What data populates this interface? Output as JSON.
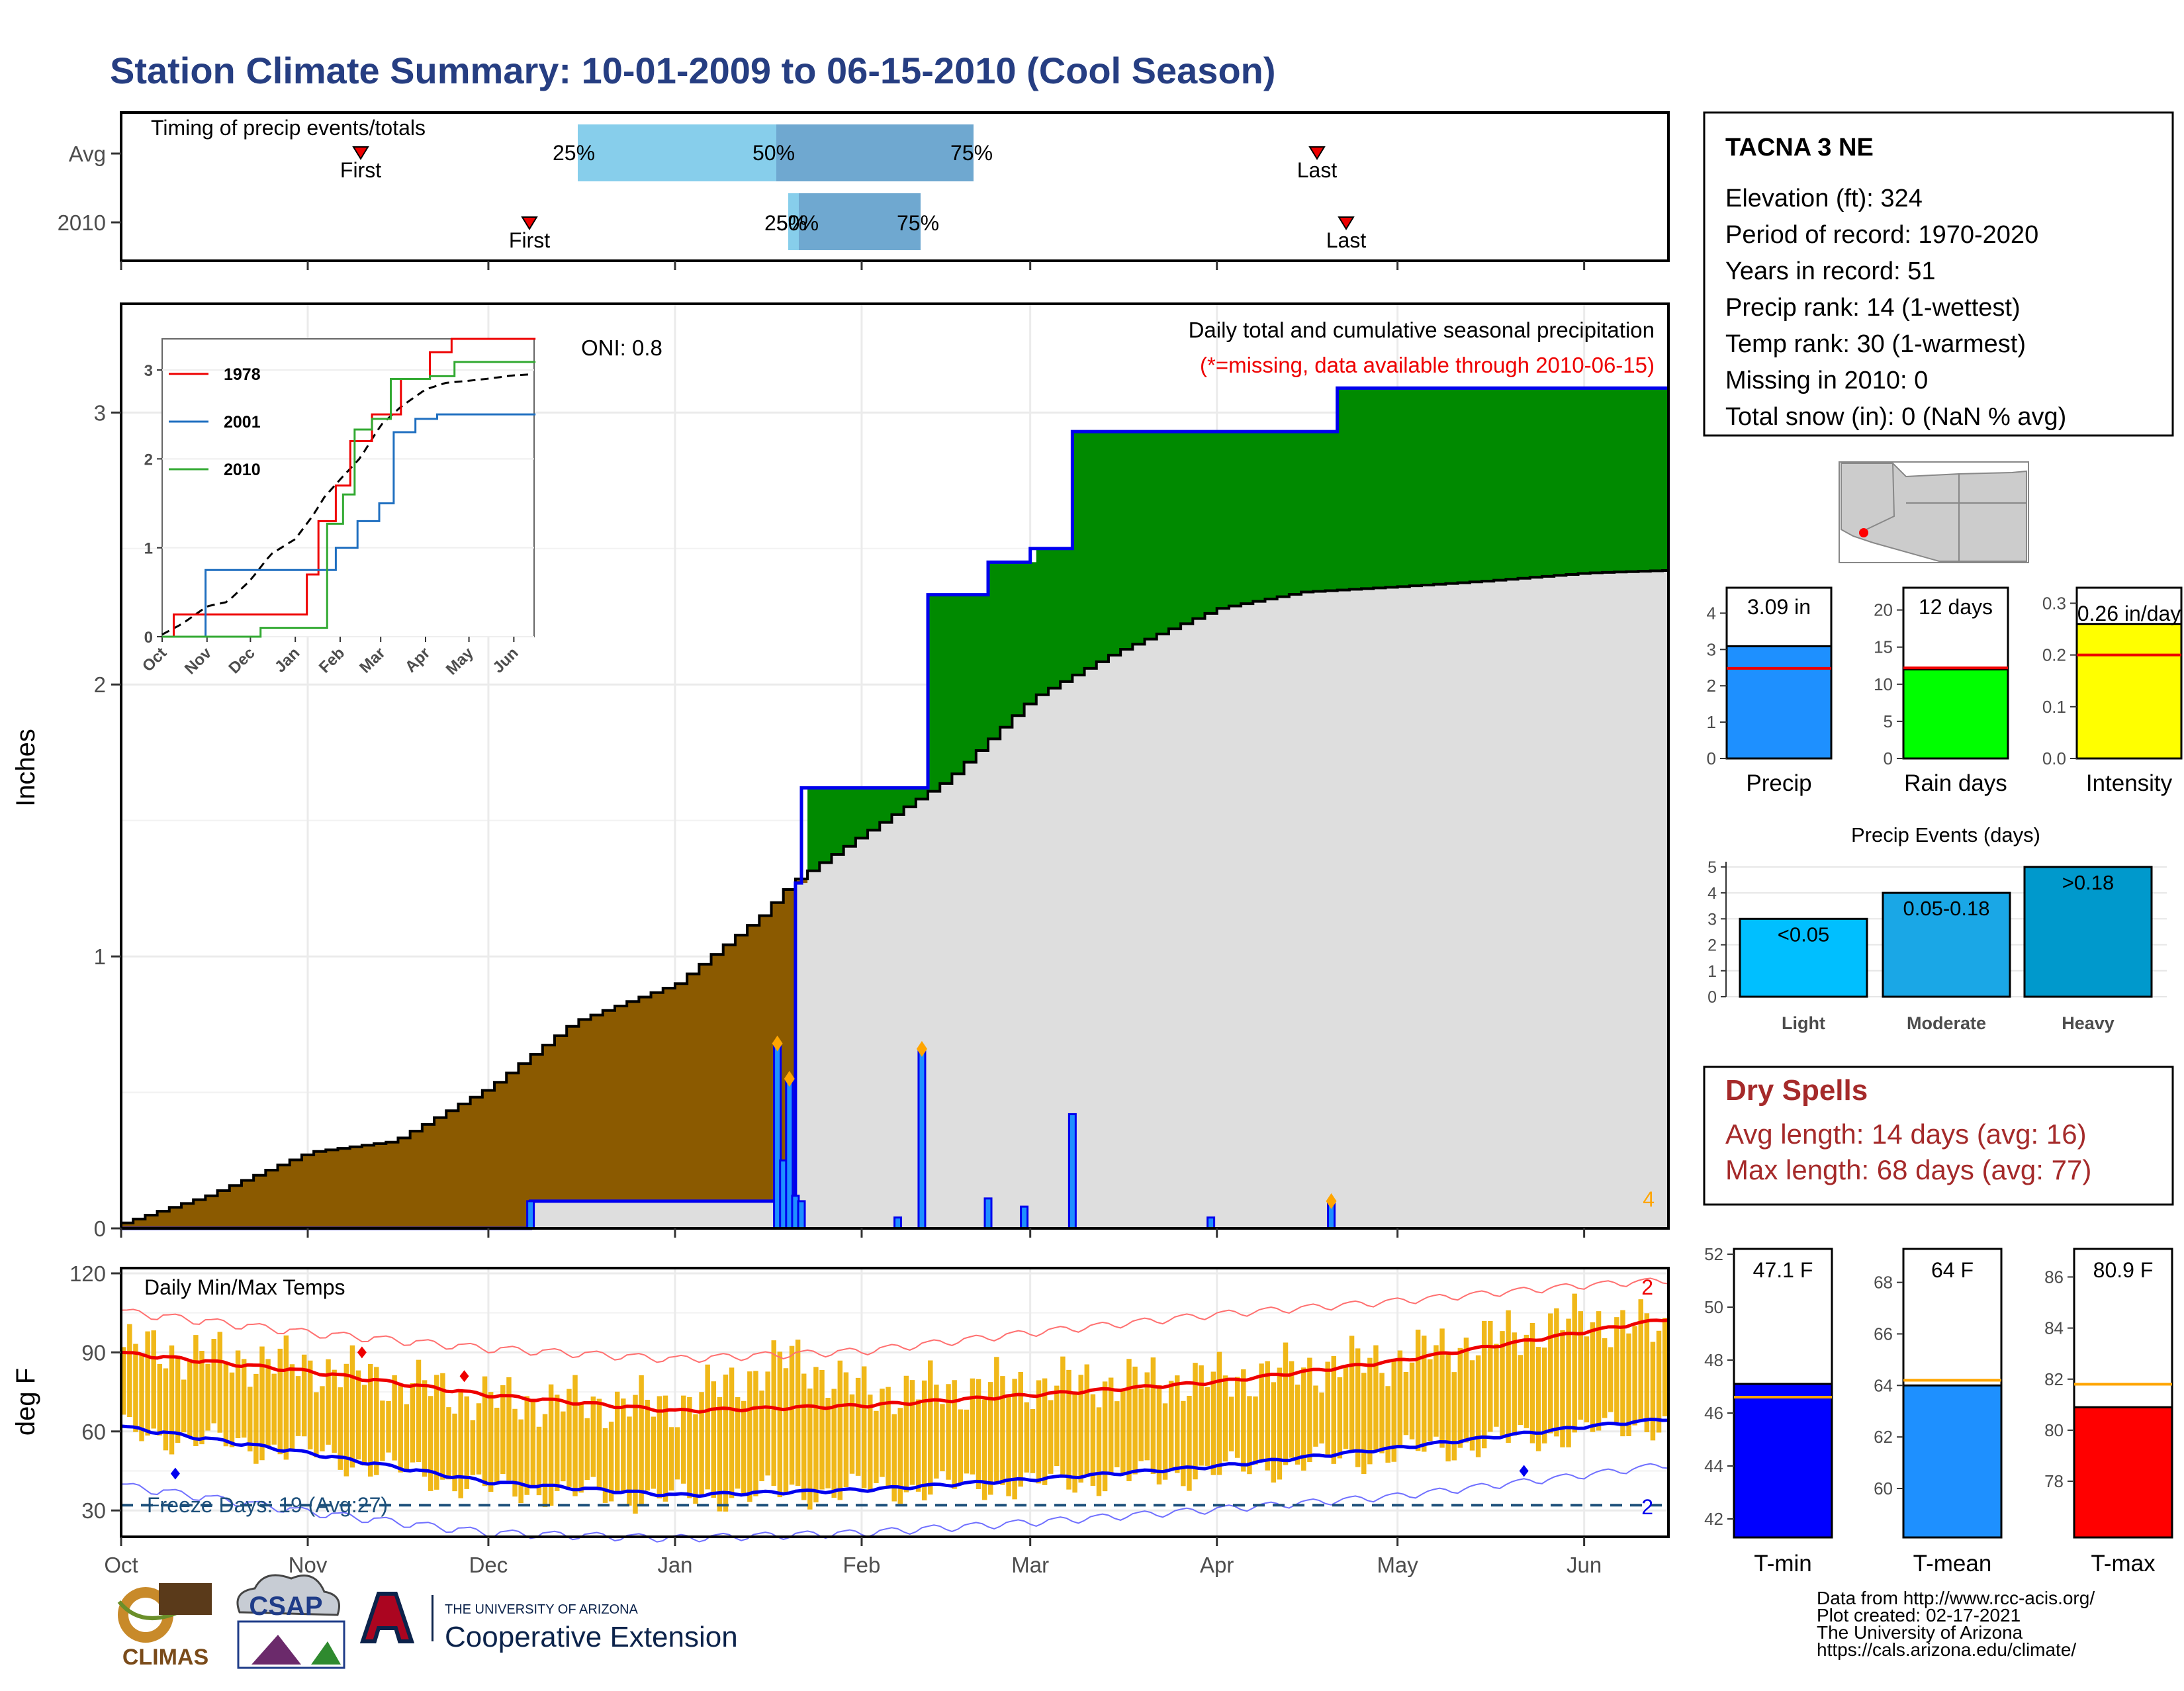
{
  "title": "Station Climate Summary: 10-01-2009 to 06-15-2010 (Cool Season)",
  "colors": {
    "title": "#263e82",
    "brown": "#8b5a00",
    "green": "#008a00",
    "blue": "#0000ee",
    "grey": "#dedede",
    "red": "#ee0000",
    "orange": "#ffa500",
    "gold": "#eeb000",
    "dry_spell": "#a52a2a",
    "freeze_line": "#1c4f7a"
  },
  "station_box": {
    "name": "TACNA 3 NE",
    "lines": [
      "Elevation (ft): 324",
      "Period of record: 1970-2020",
      "Years in record: 51",
      "Precip rank: 14 (1-wettest)",
      "Temp rank: 30 (1-warmest)",
      "Missing in 2010: 0",
      "Total snow (in): 0 (NaN % avg)"
    ]
  },
  "month_labels": [
    "Oct",
    "Nov",
    "Dec",
    "Jan",
    "Feb",
    "Mar",
    "Apr",
    "May",
    "Jun"
  ],
  "timing": {
    "title": "Timing of precip events/totals",
    "rows": [
      {
        "label": "Avg",
        "first": "First",
        "last": "Last",
        "p25": "25%",
        "p50": "50%",
        "p75": "75%"
      },
      {
        "label": "2010",
        "first": "First",
        "last": "Last",
        "p25": "25%",
        "p50": "50%",
        "p75": "75%"
      }
    ]
  },
  "precip_panel": {
    "title": "Daily total and cumulative seasonal precipitation",
    "subtitle": "(*=missing, data available through 2010-06-15)",
    "oni": "ONI: 0.8",
    "ylabel": "Inches",
    "y_ticks": [
      "0",
      "1",
      "2",
      "3"
    ],
    "extreme_count": "4"
  },
  "inset": {
    "legend": [
      "1978",
      "2001",
      "2010"
    ],
    "legend_colors": [
      "#ee0000",
      "#1f6fc0",
      "#33aa33"
    ],
    "y_ticks": [
      "0",
      "1",
      "2",
      "3"
    ],
    "x_ticks": [
      "Oct",
      "Nov",
      "Dec",
      "Jan",
      "Feb",
      "Mar",
      "Apr",
      "May",
      "Jun"
    ]
  },
  "temp_panel": {
    "title": "Daily Min/Max Temps",
    "ylabel": "deg F",
    "y_ticks": [
      "30",
      "60",
      "90",
      "120"
    ],
    "freeze_text": "Freeze Days: 19 (Avg:27)",
    "record_high_count": "2",
    "record_low_count": "2"
  },
  "summary_bars": [
    {
      "name": "Precip",
      "label": "3.09 in",
      "ticks": [
        "0",
        "1",
        "2",
        "3",
        "4"
      ],
      "value": 3.09,
      "avg": 2.48,
      "max": 4.7,
      "color": "#1e90ff"
    },
    {
      "name": "Rain days",
      "label": "12 days",
      "ticks": [
        "0",
        "5",
        "10",
        "15",
        "20"
      ],
      "value": 12,
      "avg": 12.2,
      "max": 23,
      "color": "#00ff00"
    },
    {
      "name": "Intensity",
      "label": "0.26 in/day",
      "ticks": [
        "0.0",
        "0.1",
        "0.2",
        "0.3"
      ],
      "value": 0.26,
      "avg": 0.2,
      "max": 0.33,
      "color": "#ffff00"
    }
  ],
  "precip_events": {
    "title": "Precip Events (days)",
    "y_ticks": [
      "0",
      "1",
      "2",
      "3",
      "4",
      "5"
    ],
    "bars": [
      {
        "name": "Light",
        "label": "<0.05",
        "value": 3,
        "color": "#00bfff"
      },
      {
        "name": "Moderate",
        "label": "0.05-0.18",
        "value": 4,
        "color": "#1aa7e6"
      },
      {
        "name": "Heavy",
        "label": ">0.18",
        "value": 5,
        "color": "#0099cc"
      }
    ]
  },
  "dry_spells": {
    "title": "Dry Spells",
    "avg": "Avg length: 14 days (avg: 16)",
    "max": "Max length: 68 days (avg: 77)"
  },
  "temp_bars": [
    {
      "name": "T-min",
      "label": "47.1 F",
      "ticks": [
        "42",
        "44",
        "46",
        "48",
        "50",
        "52"
      ],
      "min": 41.3,
      "max": 52.2,
      "value": 47.1,
      "avg": 46.6,
      "color": "#0000ff"
    },
    {
      "name": "T-mean",
      "label": "64 F",
      "ticks": [
        "60",
        "62",
        "64",
        "66",
        "68"
      ],
      "min": 58.1,
      "max": 69.3,
      "value": 64.0,
      "avg": 64.2,
      "color": "#1e90ff"
    },
    {
      "name": "T-max",
      "label": "80.9 F",
      "ticks": [
        "78",
        "80",
        "82",
        "84",
        "86"
      ],
      "min": 75.8,
      "max": 87.1,
      "value": 80.9,
      "avg": 81.8,
      "color": "#ff0000"
    }
  ],
  "footer": {
    "lines": [
      "Data from http://www.rcc-acis.org/",
      "Plot created: 02-17-2021",
      "The University of Arizona",
      "https://cals.arizona.edu/climate/"
    ],
    "climas": "CLIMAS",
    "csap": "CSAP",
    "ua_top": "THE UNIVERSITY OF ARIZONA",
    "ua_bottom": "Cooperative Extension"
  },
  "chart_data": [
    {
      "type": "area",
      "title": "Daily total and cumulative seasonal precipitation",
      "ylabel": "Inches",
      "ylim": [
        0,
        3.4
      ],
      "xlim": [
        "2009-10-01",
        "2010-06-15"
      ],
      "series": [
        {
          "name": "Avg",
          "x": [
            "2009-10-01",
            "2009-10-15",
            "2009-11-01",
            "2009-11-15",
            "2009-12-01",
            "2009-12-15",
            "2010-01-01",
            "2010-01-15",
            "2010-01-20",
            "2010-02-01",
            "2010-02-15",
            "2010-03-01",
            "2010-03-15",
            "2010-04-01",
            "2010-04-15",
            "2010-05-01",
            "2010-05-15",
            "2010-06-01",
            "2010-06-15"
          ],
          "y": [
            0.02,
            0.12,
            0.28,
            0.32,
            0.52,
            0.76,
            0.9,
            1.15,
            1.27,
            1.45,
            1.65,
            1.95,
            2.12,
            2.28,
            2.34,
            2.36,
            2.38,
            2.41,
            2.42
          ]
        },
        {
          "name": "2010",
          "x": [
            "2009-10-01",
            "2009-12-08",
            "2010-01-20",
            "2010-01-21",
            "2010-01-22",
            "2010-02-01",
            "2010-02-11",
            "2010-02-12",
            "2010-02-22",
            "2010-03-01",
            "2010-03-08",
            "2010-04-20",
            "2010-04-21",
            "2010-06-15"
          ],
          "y": [
            0.0,
            0.1,
            0.1,
            1.27,
            1.62,
            1.62,
            1.62,
            2.33,
            2.45,
            2.5,
            2.93,
            2.93,
            3.09,
            3.09
          ]
        },
        {
          "name": "Daily precip",
          "x": [
            "2009-12-08",
            "2010-01-18",
            "2010-01-19",
            "2010-01-20",
            "2010-01-21",
            "2010-01-22",
            "2010-02-07",
            "2010-02-11",
            "2010-02-22",
            "2010-02-28",
            "2010-03-08",
            "2010-03-31",
            "2010-04-20"
          ],
          "y": [
            0.1,
            0.68,
            0.25,
            0.55,
            0.12,
            0.1,
            0.04,
            0.66,
            0.11,
            0.08,
            0.42,
            0.04,
            0.1
          ]
        }
      ]
    },
    {
      "type": "line",
      "title": "Daily Min/Max Temps",
      "ylabel": "deg F",
      "ylim": [
        20,
        122
      ],
      "series": [
        {
          "name": "Avg max",
          "x": [
            "2009-10-01",
            "2009-11-01",
            "2009-12-01",
            "2010-01-01",
            "2010-02-01",
            "2010-03-01",
            "2010-04-01",
            "2010-05-01",
            "2010-06-01",
            "2010-06-15"
          ],
          "y": [
            90,
            83,
            74,
            68,
            70,
            74,
            79,
            87,
            98,
            103
          ]
        },
        {
          "name": "Avg min",
          "x": [
            "2009-10-01",
            "2009-11-01",
            "2009-12-01",
            "2010-01-01",
            "2010-02-01",
            "2010-03-01",
            "2010-04-01",
            "2010-05-01",
            "2010-06-01",
            "2010-06-15"
          ],
          "y": [
            62,
            52,
            41,
            36,
            38,
            42,
            47,
            54,
            62,
            65
          ]
        },
        {
          "name": "Record max",
          "x": [
            "2009-10-01",
            "2009-11-01",
            "2009-12-01",
            "2010-01-01",
            "2010-02-01",
            "2010-03-01",
            "2010-04-01",
            "2010-05-01",
            "2010-06-01",
            "2010-06-15"
          ],
          "y": [
            106,
            98,
            92,
            88,
            91,
            98,
            105,
            110,
            116,
            118
          ]
        },
        {
          "name": "Record min",
          "x": [
            "2009-10-01",
            "2009-11-01",
            "2009-12-01",
            "2010-01-01",
            "2010-02-01",
            "2010-03-01",
            "2010-04-01",
            "2010-05-01",
            "2010-06-01",
            "2010-06-15"
          ],
          "y": [
            40,
            30,
            22,
            20,
            22,
            26,
            31,
            36,
            44,
            48
          ]
        },
        {
          "name": "Daily max",
          "x": [
            "2009-10-01",
            "2009-11-01",
            "2009-12-01",
            "2010-01-01",
            "2010-01-20",
            "2010-02-01",
            "2010-03-01",
            "2010-04-01",
            "2010-05-01",
            "2010-06-01",
            "2010-06-15"
          ],
          "y": [
            92,
            85,
            72,
            70,
            88,
            75,
            78,
            80,
            88,
            103,
            98
          ]
        },
        {
          "name": "Daily min",
          "x": [
            "2009-10-01",
            "2009-11-01",
            "2009-12-01",
            "2010-01-01",
            "2010-02-01",
            "2010-03-01",
            "2010-04-01",
            "2010-05-01",
            "2010-06-01",
            "2010-06-15"
          ],
          "y": [
            60,
            52,
            38,
            35,
            38,
            40,
            45,
            52,
            60,
            64
          ]
        }
      ]
    }
  ]
}
